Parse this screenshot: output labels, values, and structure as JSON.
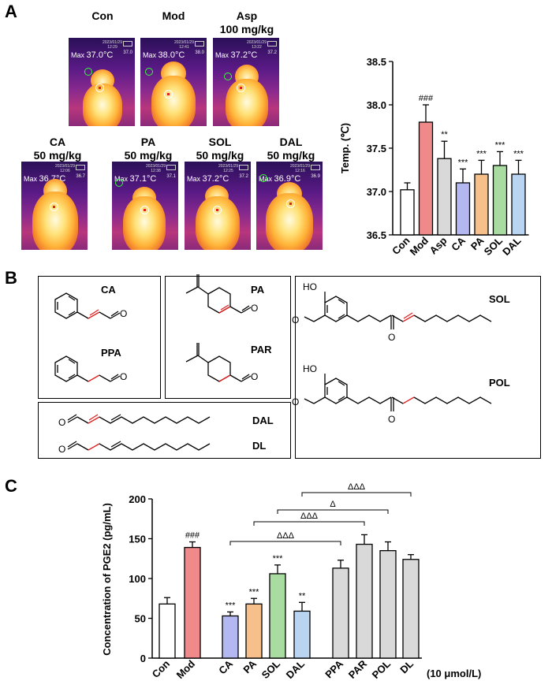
{
  "panels": {
    "a": "A",
    "b": "B",
    "c": "C"
  },
  "thermal_images": [
    {
      "label": "Con",
      "dose": "",
      "max_temp": "37.0°C",
      "date": "2023/01/29",
      "time": "12:29",
      "scale_top": "37.0",
      "spot_temp": "37.0"
    },
    {
      "label": "Mod",
      "dose": "",
      "max_temp": "38.0°C",
      "date": "2023/01/29",
      "time": "12:41",
      "scale_top": "38.0",
      "spot_temp": "38.0"
    },
    {
      "label": "Asp",
      "dose": "100 mg/kg",
      "max_temp": "37.2°C",
      "date": "2023/01/29",
      "time": "13:22",
      "scale_top": "37.2",
      "spot_temp": "37.2"
    },
    {
      "label": "CA",
      "dose": "50 mg/kg",
      "max_temp": "36.7°C",
      "date": "2023/01/29",
      "time": "12:06",
      "scale_top": "36.7",
      "spot_temp": "36.7"
    },
    {
      "label": "PA",
      "dose": "50 mg/kg",
      "max_temp": "37.1°C",
      "date": "2023/01/29",
      "time": "12:38",
      "scale_top": "37.1",
      "spot_temp": "37.1"
    },
    {
      "label": "SOL",
      "dose": "50 mg/kg",
      "max_temp": "37.2°C",
      "date": "2023/01/29",
      "time": "12:25",
      "scale_top": "37.2",
      "spot_temp": "37.2"
    },
    {
      "label": "DAL",
      "dose": "50 mg/kg",
      "max_temp": "36.9°C",
      "date": "2023/01/29",
      "time": "12:16",
      "scale_top": "36.9",
      "spot_temp": "36.9"
    }
  ],
  "max_prefix": "Max",
  "structures": {
    "CA": "CA",
    "PPA": "PPA",
    "PA": "PA",
    "PAR": "PAR",
    "SOL": "SOL",
    "POL": "POL",
    "DAL": "DAL",
    "DL": "DL",
    "HO": "HO",
    "O": "O"
  },
  "chart_data": [
    {
      "type": "bar",
      "title": "",
      "ylabel": "Temp. (℃)",
      "xlabel": "",
      "categories": [
        "Con",
        "Mod",
        "Asp",
        "CA",
        "PA",
        "SOL",
        "DAL"
      ],
      "values": [
        37.02,
        37.8,
        37.38,
        37.1,
        37.2,
        37.3,
        37.2
      ],
      "errors": [
        0.08,
        0.2,
        0.2,
        0.16,
        0.16,
        0.16,
        0.16
      ],
      "significance": [
        "",
        "###",
        "**",
        "***",
        "***",
        "***",
        "***"
      ],
      "colors": [
        "#ffffff",
        "#f08a8a",
        "#d9d9d9",
        "#b4b8f0",
        "#f7c08a",
        "#a8dca0",
        "#b8d4f0"
      ],
      "ylim": [
        36.5,
        38.5
      ],
      "yticks": [
        "36.5",
        "37.0",
        "37.5",
        "38.0",
        "38.5"
      ]
    },
    {
      "type": "bar",
      "title": "",
      "ylabel": "Concentration of PGE2 (pg/mL)",
      "xlabel": "",
      "unit_note": "(10 μmol/L)",
      "categories": [
        "Con",
        "Mod",
        "CA",
        "PA",
        "SOL",
        "DAL",
        "PPA",
        "PAR",
        "POL",
        "DL"
      ],
      "values": [
        68,
        139,
        53,
        68,
        106,
        59,
        113,
        143,
        135,
        124
      ],
      "errors": [
        8,
        7,
        5,
        7,
        11,
        11,
        10,
        12,
        11,
        6
      ],
      "significance": [
        "",
        "###",
        "***",
        "***",
        "***",
        "**",
        "",
        "",
        "",
        ""
      ],
      "colors": [
        "#ffffff",
        "#f08a8a",
        "#b4b8f0",
        "#f7c08a",
        "#a8dca0",
        "#b8d4f0",
        "#d9d9d9",
        "#d9d9d9",
        "#d9d9d9",
        "#d9d9d9"
      ],
      "ylim": [
        0,
        200
      ],
      "yticks": [
        "0",
        "50",
        "100",
        "150",
        "200"
      ],
      "comparisons": [
        {
          "from": "CA",
          "to": "PPA",
          "label": "ΔΔΔ"
        },
        {
          "from": "PA",
          "to": "PAR",
          "label": "ΔΔΔ"
        },
        {
          "from": "SOL",
          "to": "POL",
          "label": "Δ"
        },
        {
          "from": "DAL",
          "to": "DL",
          "label": "ΔΔΔ"
        }
      ]
    }
  ]
}
